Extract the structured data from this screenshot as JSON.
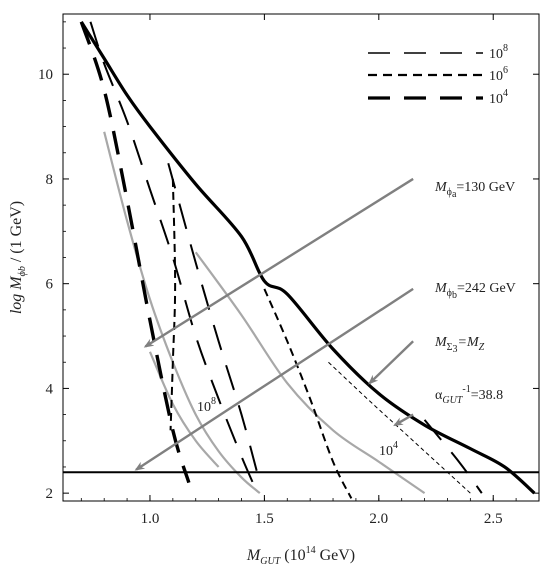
{
  "chart_data": {
    "type": "line",
    "xlabel": {
      "main": "M",
      "sub": "GUT",
      "tail": " (10",
      "sup": "14",
      "end": " GeV)"
    },
    "ylabel": {
      "main": "log M",
      "sub": "ϕb",
      "tail": " / (1 GeV)"
    },
    "xlim": [
      0.62,
      2.7
    ],
    "ylim": [
      1.85,
      11.15
    ],
    "xticks": [
      1.0,
      1.5,
      2.0,
      2.5
    ],
    "xtick_labels": [
      "1.0",
      "1.5",
      "2.0",
      "2.5"
    ],
    "yticks": [
      2,
      4,
      6,
      8,
      10
    ],
    "ytick_labels": [
      "2",
      "4",
      "6",
      "8",
      "10"
    ],
    "grid": false,
    "legend_position": "top-right",
    "legend": [
      {
        "label": "10",
        "sup": "8",
        "style": "long-dash-thin"
      },
      {
        "label": "10",
        "sup": "6",
        "style": "short-dash"
      },
      {
        "label": "10",
        "sup": "4",
        "style": "long-dash-thick"
      }
    ],
    "series": [
      {
        "style": "black-thick-solid",
        "x": [
          0.7,
          0.8,
          0.9,
          1.0,
          1.2,
          1.4,
          1.5,
          1.6,
          1.8,
          2.0,
          2.2,
          2.4,
          2.55,
          2.68
        ],
        "y": [
          11.0,
          10.3,
          9.6,
          9.0,
          7.9,
          6.9,
          6.05,
          5.8,
          4.75,
          3.9,
          3.3,
          2.85,
          2.5,
          2.0
        ]
      },
      {
        "style": "gray-solid",
        "x": [
          0.8,
          0.9,
          1.0,
          1.1,
          1.2,
          1.3,
          1.4,
          1.48
        ],
        "y": [
          8.9,
          7.2,
          5.7,
          4.5,
          3.5,
          2.8,
          2.3,
          2.0
        ]
      },
      {
        "style": "gray-solid",
        "x": [
          1.2,
          1.4,
          1.6,
          1.8,
          2.0,
          2.2
        ],
        "y": [
          6.6,
          5.4,
          4.1,
          3.2,
          2.6,
          2.0
        ]
      },
      {
        "style": "gray-solid",
        "x": [
          1.0,
          1.1,
          1.2,
          1.3
        ],
        "y": [
          4.7,
          3.7,
          3.0,
          2.5
        ]
      },
      {
        "style": "black-long-dash-thick",
        "x": [
          0.7,
          0.8,
          0.9,
          1.0,
          1.1,
          1.17
        ],
        "y": [
          11.0,
          9.7,
          7.6,
          5.3,
          3.2,
          2.2
        ]
      },
      {
        "style": "black-long-dash",
        "x": [
          0.74,
          0.8,
          0.9,
          1.0,
          1.1,
          1.2,
          1.3,
          1.4,
          1.47
        ],
        "y": [
          11.0,
          10.2,
          9.1,
          7.8,
          6.5,
          5.0,
          3.8,
          2.7,
          2.0
        ]
      },
      {
        "style": "black-long-dash",
        "x": [
          1.08,
          1.2,
          1.3,
          1.4,
          1.48
        ],
        "y": [
          8.3,
          6.4,
          4.9,
          3.5,
          2.2
        ]
      },
      {
        "style": "black-short-dash",
        "x": [
          1.1,
          1.11,
          1.1,
          1.09
        ],
        "y": [
          8.0,
          6.0,
          4.5,
          3.2
        ]
      },
      {
        "style": "black-short-dash",
        "x": [
          1.5,
          1.6,
          1.7,
          1.8,
          1.88
        ],
        "y": [
          5.9,
          4.9,
          3.8,
          2.6,
          1.9
        ]
      },
      {
        "style": "black-short-dash-thin",
        "x": [
          1.78,
          1.95,
          2.1,
          2.25,
          2.4
        ],
        "y": [
          4.5,
          3.8,
          3.2,
          2.6,
          2.0
        ]
      },
      {
        "style": "black-long-dash",
        "x": [
          2.2,
          2.35,
          2.45
        ],
        "y": [
          3.4,
          2.6,
          2.0
        ]
      },
      {
        "style": "black-solid",
        "x": [
          0.62,
          2.7
        ],
        "y": [
          2.4,
          2.4
        ]
      }
    ],
    "annotations": [
      {
        "id": "phi-a",
        "text": "=130 GeV",
        "sym": "M",
        "sub": "ϕa",
        "arrow_from": [
          2.15,
          8.0
        ],
        "arrow_to": [
          0.98,
          4.8
        ]
      },
      {
        "id": "phi-b",
        "text": "=242 GeV",
        "sym": "M",
        "sub": "ϕb",
        "arrow_from": [
          2.15,
          5.9
        ],
        "arrow_to": [
          0.94,
          2.45
        ]
      },
      {
        "id": "sigma3",
        "text": "=M",
        "sym": "M",
        "sub": "Σ3",
        "tail_sub": "Z",
        "arrow_from": [
          2.15,
          4.9
        ],
        "arrow_to": [
          1.96,
          4.1
        ]
      },
      {
        "id": "alpha",
        "text": "=38.8",
        "sym": "α",
        "sub": "GUT",
        "sup": "-1",
        "arrow_from": [
          2.15,
          3.5
        ],
        "arrow_to": [
          2.07,
          3.3
        ]
      }
    ],
    "inline_labels": [
      {
        "text": "10",
        "sup": "8",
        "x": 1.22,
        "y": 3.5
      },
      {
        "text": "10",
        "sup": "4",
        "x": 2.03,
        "y": 2.7
      }
    ]
  },
  "legend_entries": [
    {
      "label": "10",
      "sup": "8"
    },
    {
      "label": "10",
      "sup": "6"
    },
    {
      "label": "10",
      "sup": "4"
    }
  ],
  "annotations_text": {
    "phi_a_value": "=130 GeV",
    "phi_b_value": "=242 GeV",
    "sigma3_value": "=M",
    "sigma3_tail_sub": "Z",
    "alpha_value": "=38.8"
  }
}
